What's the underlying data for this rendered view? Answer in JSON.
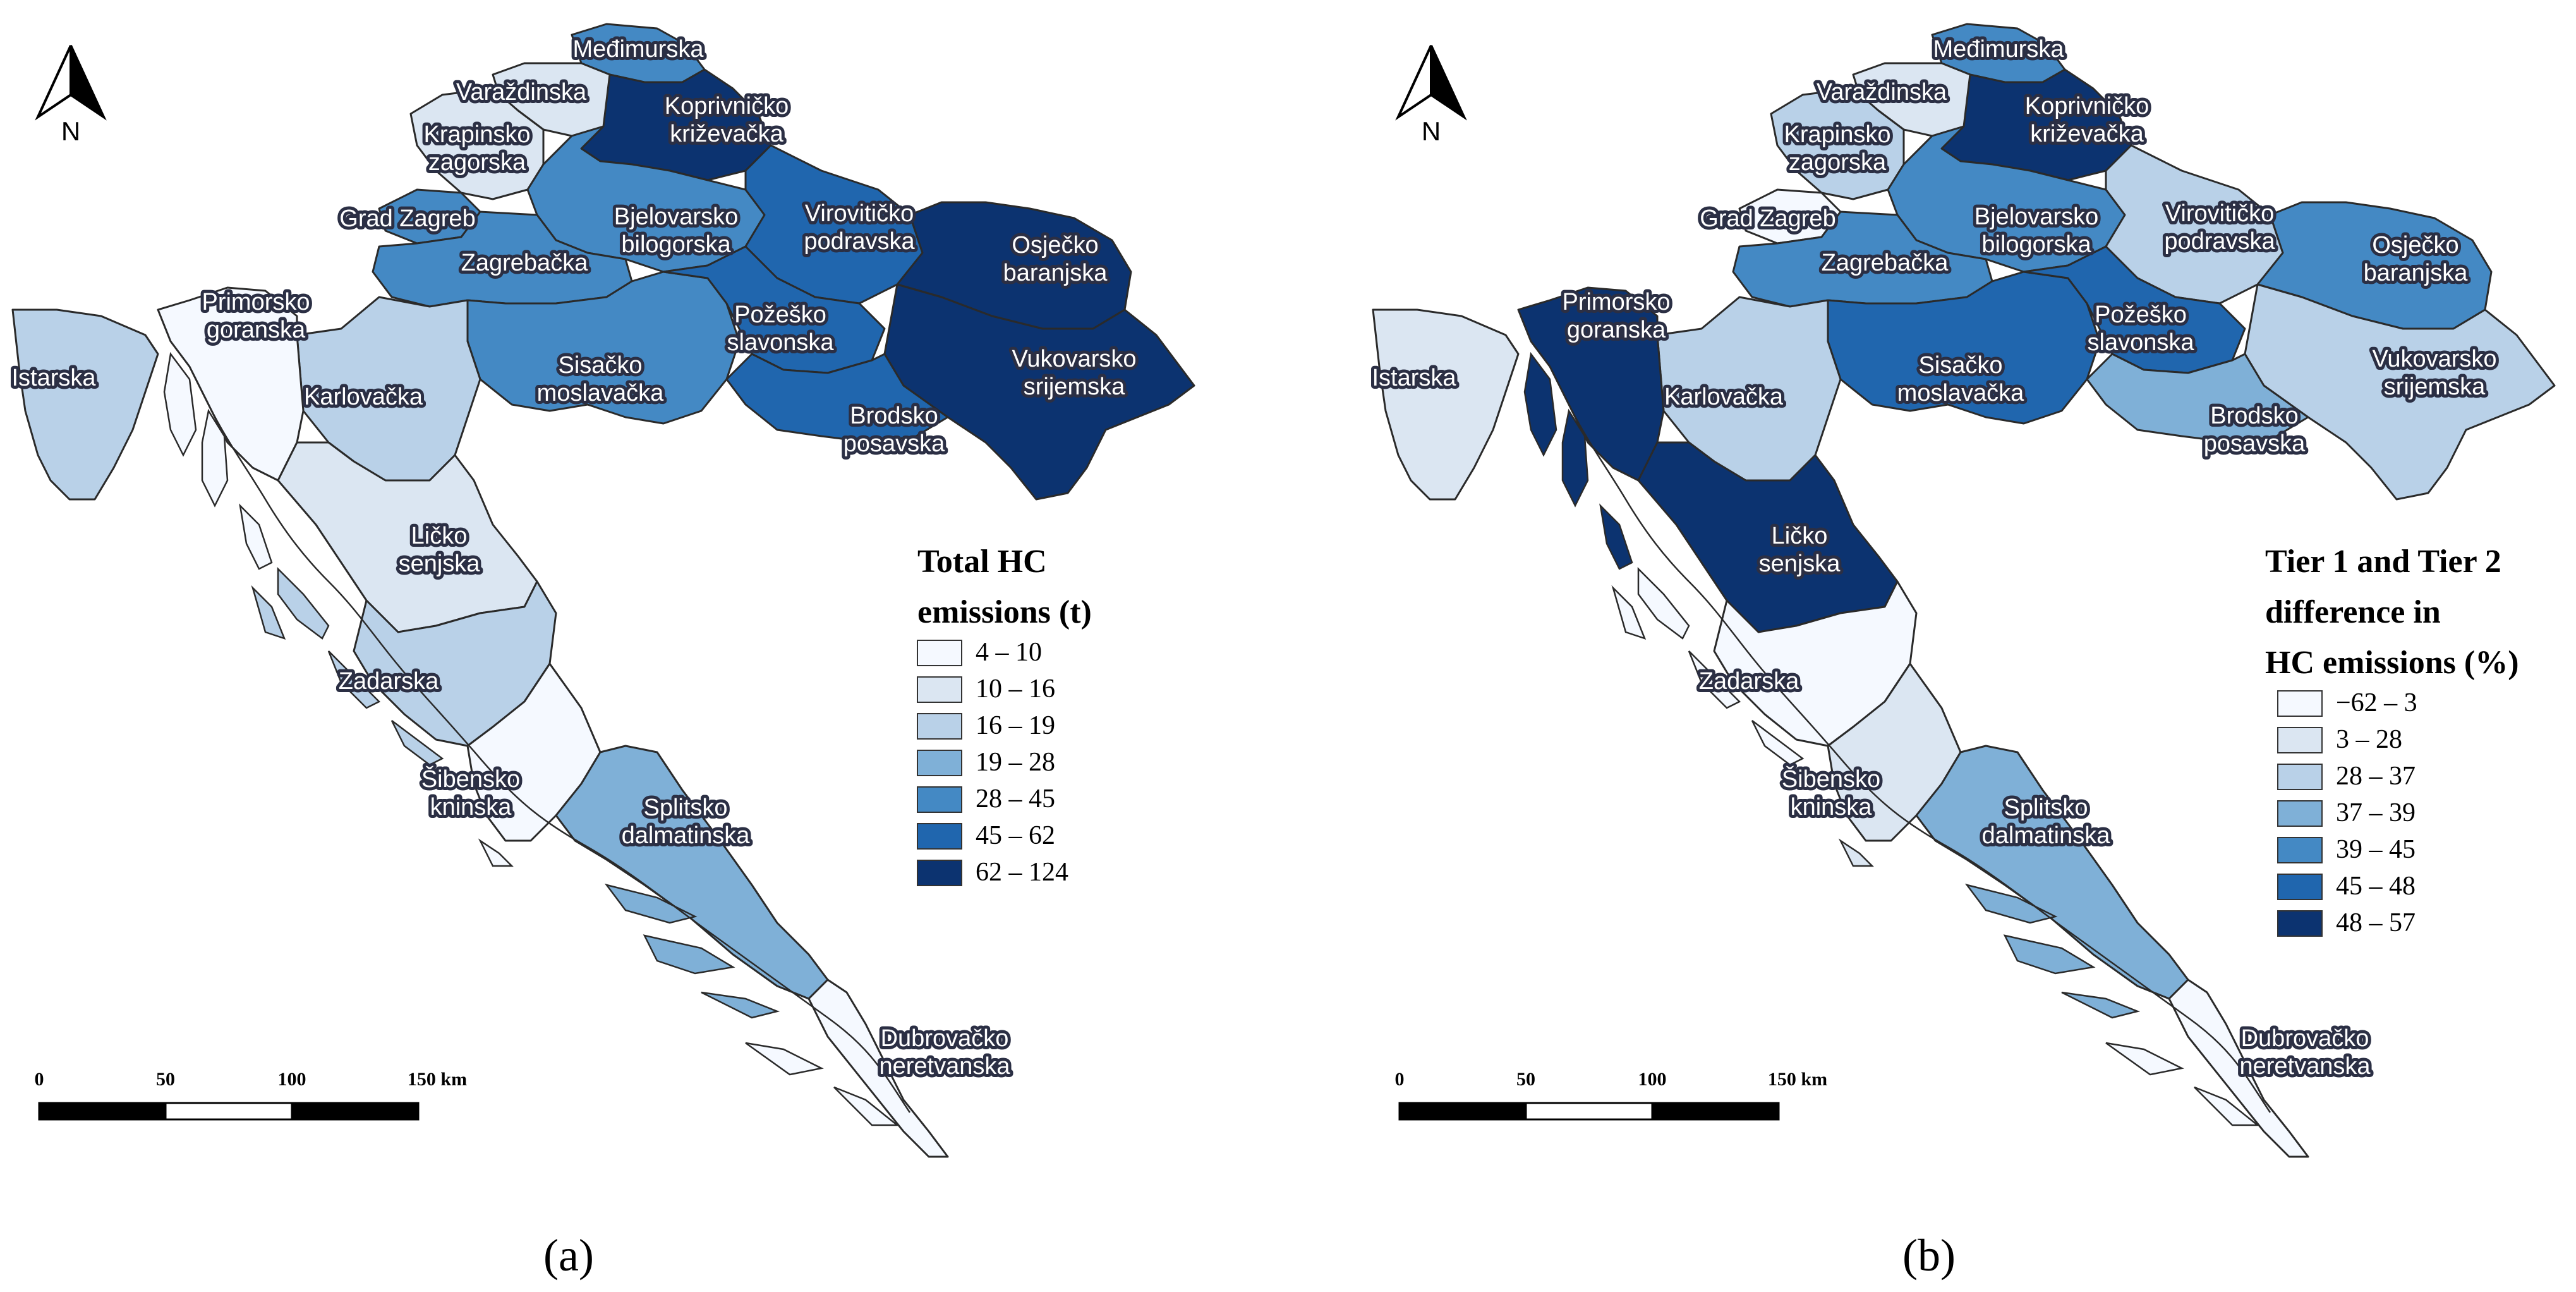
{
  "panels": [
    {
      "caption": "(a)",
      "north": "N",
      "legend_title_lines": [
        "Total HC",
        "emissions (t)"
      ],
      "legend": [
        {
          "label": "4 – 10",
          "color": "#f5f9ff"
        },
        {
          "label": "10 – 16",
          "color": "#dbe6f2"
        },
        {
          "label": "16 – 19",
          "color": "#b9d1e8"
        },
        {
          "label": "19 – 28",
          "color": "#7fb0d7"
        },
        {
          "label": "28 – 45",
          "color": "#4489c4"
        },
        {
          "label": "45 – 62",
          "color": "#2066ae"
        },
        {
          "label": "62 – 124",
          "color": "#0c3370"
        }
      ],
      "scale": {
        "ticks": [
          "0",
          "50",
          "100",
          "150 km"
        ]
      },
      "regions": {
        "medimurska": 4,
        "varazdinska": 1,
        "krapinsko": 1,
        "koprivnicko": 6,
        "bjelovarsko": 4,
        "viroviticko": 5,
        "osjecko": 6,
        "vukovarsko": 6,
        "grad_zagreb": 4,
        "zagrebacka": 4,
        "sisacko": 4,
        "pozesko": 5,
        "brodsko": 5,
        "karlovacka": 2,
        "primorsko": 0,
        "istarska": 2,
        "licko": 1,
        "zadarska": 2,
        "sibensko": 0,
        "splitsko": 3,
        "dubrovacko": 0
      }
    },
    {
      "caption": "(b)",
      "north": "N",
      "legend_title_lines": [
        "Tier 1 and Tier 2",
        "difference in",
        "HC emissions (%)"
      ],
      "legend": [
        {
          "label": "−62 – 3",
          "color": "#f5f9ff"
        },
        {
          "label": "3 – 28",
          "color": "#dbe6f2"
        },
        {
          "label": "28 – 37",
          "color": "#b9d1e8"
        },
        {
          "label": "37 – 39",
          "color": "#7fb0d7"
        },
        {
          "label": "39 – 45",
          "color": "#4489c4"
        },
        {
          "label": "45 – 48",
          "color": "#2066ae"
        },
        {
          "label": "48 – 57",
          "color": "#0c3370"
        }
      ],
      "scale": {
        "ticks": [
          "0",
          "50",
          "100",
          "150 km"
        ]
      },
      "regions": {
        "medimurska": 4,
        "varazdinska": 1,
        "krapinsko": 2,
        "koprivnicko": 6,
        "bjelovarsko": 4,
        "viroviticko": 2,
        "osjecko": 4,
        "vukovarsko": 2,
        "grad_zagreb": 0,
        "zagrebacka": 4,
        "sisacko": 5,
        "pozesko": 5,
        "brodsko": 3,
        "karlovacka": 2,
        "primorsko": 6,
        "istarska": 1,
        "licko": 6,
        "zadarska": 0,
        "sibensko": 1,
        "splitsko": 3,
        "dubrovacko": 0
      }
    }
  ],
  "county_labels": {
    "medimurska": [
      "Međimurska"
    ],
    "varazdinska": [
      "Varaždinska"
    ],
    "krapinsko": [
      "Krapinsko",
      "zagorska"
    ],
    "koprivnicko": [
      "Koprivničko",
      "križevačka"
    ],
    "bjelovarsko": [
      "Bjelovarsko",
      "bilogorska"
    ],
    "viroviticko": [
      "Virovitičko",
      "podravska"
    ],
    "osjecko": [
      "Osječko",
      "baranjska"
    ],
    "vukovarsko": [
      "Vukovarsko",
      "srijemska"
    ],
    "grad_zagreb": [
      "Grad Zagreb"
    ],
    "zagrebacka": [
      "Zagrebačka"
    ],
    "sisacko": [
      "Sisačko",
      "moslavačka"
    ],
    "pozesko": [
      "Požeško",
      "slavonska"
    ],
    "brodsko": [
      "Brodsko",
      "posavska"
    ],
    "karlovacka": [
      "Karlovačka"
    ],
    "primorsko": [
      "Primorsko",
      "goranska"
    ],
    "istarska": [
      "Istarska"
    ],
    "licko": [
      "Ličko",
      "senjska"
    ],
    "zadarska": [
      "Zadarska"
    ],
    "sibensko": [
      "Šibensko",
      "kninska"
    ],
    "splitsko": [
      "Splitsko",
      "dalmatinska"
    ],
    "dubrovacko": [
      "Dubrovačko",
      "neretvanska"
    ]
  }
}
